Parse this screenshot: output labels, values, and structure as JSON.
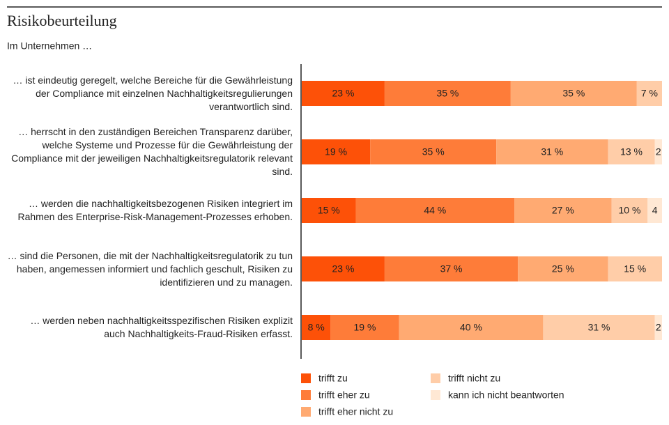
{
  "chart_data": {
    "type": "stacked-bar-horizontal",
    "title": "Risikobeurteilung",
    "subtitle": "Im Unternehmen …",
    "categories": [
      "… ist eindeutig geregelt, welche Bereiche für die Gewährleistung der Compliance mit einzelnen Nachhaltigkeitsregulierungen verantwortlich sind.",
      "… herrscht in den zuständigen Bereichen Transparenz darüber, welche Systeme und Prozesse für die Gewährleistung der Compliance mit der jeweiligen Nachhaltigkeitsregulatorik relevant sind.",
      "… werden die nachhaltigkeitsbezogenen Risiken integriert im Rahmen des Enterprise-Risk-Management-Prozesses erhoben.",
      "… sind die Personen, die mit der Nachhaltigkeitsregulatorik zu tun haben, angemessen informiert und fachlich geschult, Risiken zu identifizieren und zu managen.",
      "… werden neben nachhaltigkeitsspezifischen Risiken explizit auch Nachhaltigkeits-Fraud-Risiken erfasst."
    ],
    "series": [
      {
        "name": "trifft zu",
        "color": "#fd5108",
        "values": [
          23,
          19,
          15,
          23,
          8
        ],
        "value_labels": [
          "23 %",
          "19 %",
          "15 %",
          "23 %",
          "8 %"
        ]
      },
      {
        "name": "trifft eher zu",
        "color": "#fe7c39",
        "values": [
          35,
          35,
          44,
          37,
          19
        ],
        "value_labels": [
          "35 %",
          "35 %",
          "44 %",
          "37 %",
          "19 %"
        ]
      },
      {
        "name": "trifft eher nicht zu",
        "color": "#ffaa72",
        "values": [
          35,
          31,
          27,
          25,
          40
        ],
        "value_labels": [
          "35 %",
          "31 %",
          "27 %",
          "25 %",
          "40 %"
        ]
      },
      {
        "name": "trifft nicht zu",
        "color": "#ffcda8",
        "values": [
          7,
          13,
          10,
          15,
          31
        ],
        "value_labels": [
          "7 %",
          "13 %",
          "10 %",
          "15 %",
          "31 %"
        ]
      },
      {
        "name": "kann ich nicht beantworten",
        "color": "#ffe8d4",
        "values": [
          null,
          2,
          4,
          null,
          2
        ],
        "value_labels": [
          null,
          "2",
          "4",
          null,
          "2"
        ]
      }
    ],
    "xlim": [
      0,
      100
    ]
  }
}
